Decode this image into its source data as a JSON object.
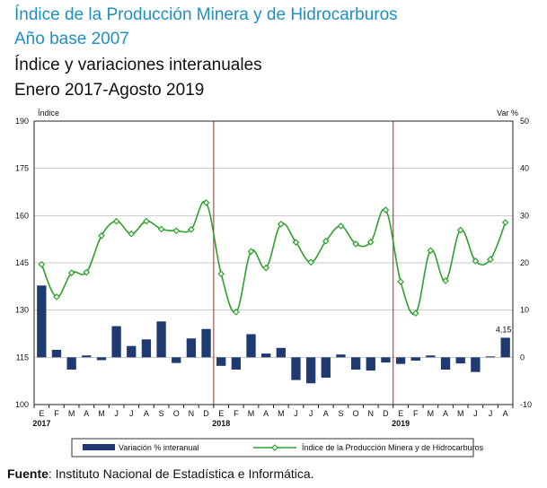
{
  "title": {
    "line1": "Índice de la Producción Minera y de Hidrocarburos",
    "line2": "Año base 2007",
    "line3": "Índice y variaciones interanuales",
    "line4": "Enero 2017-Agosto 2019"
  },
  "source": {
    "label": "Fuente",
    "text": ": Instituto Nacional de Estadística e Informática."
  },
  "colors": {
    "bars": "#1f3a70",
    "line": "#2ea02e",
    "marker_fill": "#ffffff",
    "divider": "#b22222",
    "grid": "#c8c8c8"
  },
  "chart_data": {
    "type": "bar+line",
    "left_axis": {
      "label": "Índice",
      "range": [
        100,
        190
      ],
      "ticks": [
        100,
        115,
        130,
        145,
        160,
        175,
        190
      ]
    },
    "right_axis": {
      "label": "Var %",
      "range": [
        -10,
        50
      ],
      "ticks": [
        -10,
        0,
        10,
        20,
        30,
        40,
        50
      ]
    },
    "x_month_labels": [
      "E",
      "F",
      "M",
      "A",
      "M",
      "J",
      "J",
      "A",
      "S",
      "O",
      "N",
      "D",
      "E",
      "F",
      "M",
      "A",
      "M",
      "J",
      "J",
      "A",
      "S",
      "O",
      "N",
      "D",
      "E",
      "F",
      "M",
      "A",
      "M",
      "J",
      "J",
      "A"
    ],
    "year_labels": [
      {
        "label": "2017",
        "index": 0
      },
      {
        "label": "2018",
        "index": 12
      },
      {
        "label": "2019",
        "index": 24
      }
    ],
    "year_dividers_before_index": [
      12,
      24
    ],
    "series": [
      {
        "name": "Variación % interanual",
        "type": "bar",
        "axis": "right",
        "values": [
          15.2,
          1.6,
          -2.6,
          0.4,
          -0.6,
          6.6,
          2.4,
          3.8,
          7.6,
          -1.2,
          4.0,
          6.0,
          -1.8,
          -2.6,
          4.9,
          0.8,
          2.0,
          -4.8,
          -5.5,
          -4.3,
          0.6,
          -2.6,
          -2.8,
          -1.1,
          -1.4,
          -0.7,
          0.4,
          -2.6,
          -1.3,
          -3.1,
          0.2,
          4.15
        ]
      },
      {
        "name": "Índice de la Producción Minera y de Hidrocarburos",
        "type": "line",
        "axis": "left",
        "values": [
          144.5,
          134.2,
          141.8,
          142.0,
          153.6,
          158.2,
          154.2,
          158.2,
          155.7,
          155.2,
          155.6,
          164.1,
          141.5,
          129.4,
          148.6,
          143.4,
          157.3,
          151.5,
          145.2,
          151.9,
          156.7,
          151.0,
          151.6,
          161.8,
          139.0,
          129.0,
          148.9,
          139.3,
          155.4,
          145.6,
          146.1,
          157.8
        ]
      }
    ],
    "annotations": [
      {
        "text": "4,15",
        "index": 31,
        "series": "Variación % interanual"
      }
    ],
    "legend": {
      "position": "bottom",
      "items": [
        "Variación % interanual",
        "Índice de la Producción Minera y de Hidrocarburos"
      ]
    }
  }
}
